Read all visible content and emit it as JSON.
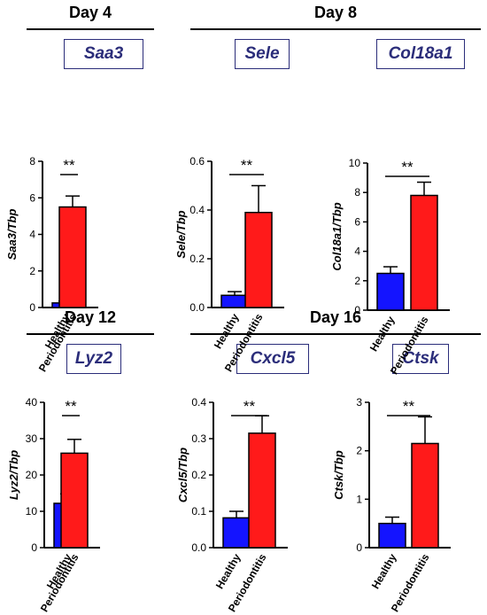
{
  "sections": [
    {
      "title": "Day 4"
    },
    {
      "title": "Day 8"
    },
    {
      "title": "Day 12"
    },
    {
      "title": "Day 16"
    }
  ],
  "colors": {
    "healthy": "#1414ff",
    "periodontitis": "#ff1a1a",
    "title_box_text": "#2b2d7a"
  },
  "chart_data": [
    {
      "type": "bar",
      "title": "Saa3",
      "ylabel": "Saa3/Tbp",
      "ylim": [
        0,
        8
      ],
      "yticks": [
        "0",
        "2",
        "4",
        "6",
        "8"
      ],
      "categories": [
        "Healthy",
        "Periodontitis"
      ],
      "values": [
        0.25,
        5.5
      ],
      "errors": [
        0.1,
        0.6
      ],
      "significance": "**"
    },
    {
      "type": "bar",
      "title": "Sele",
      "ylabel": "Sele/Tbp",
      "ylim": [
        0,
        0.6
      ],
      "yticks": [
        "0.0",
        "0.2",
        "0.4",
        "0.6"
      ],
      "categories": [
        "Healthy",
        "Periodontitis"
      ],
      "values": [
        0.05,
        0.39
      ],
      "errors": [
        0.015,
        0.11
      ],
      "significance": "**"
    },
    {
      "type": "bar",
      "title": "Col18a1",
      "ylabel": "Col18a1/Tbp",
      "ylim": [
        0,
        10
      ],
      "yticks": [
        "0",
        "2",
        "4",
        "6",
        "8",
        "10"
      ],
      "categories": [
        "Healthy",
        "Periodontitis"
      ],
      "values": [
        2.5,
        7.8
      ],
      "errors": [
        0.45,
        0.9
      ],
      "significance": "**"
    },
    {
      "type": "bar",
      "title": "Lyz2",
      "ylabel": "Lyz2/Tbp",
      "ylim": [
        0,
        40
      ],
      "yticks": [
        "0",
        "10",
        "20",
        "30",
        "40"
      ],
      "categories": [
        "Healthy",
        "Periodontitis"
      ],
      "values": [
        12.2,
        26
      ],
      "errors": [
        2.6,
        3.8
      ],
      "significance": "**"
    },
    {
      "type": "bar",
      "title": "Cxcl5",
      "ylabel": "Cxcl5/Tbp",
      "ylim": [
        0,
        0.4
      ],
      "yticks": [
        "0.0",
        "0.1",
        "0.2",
        "0.3",
        "0.4"
      ],
      "categories": [
        "Healthy",
        "Periodontitis"
      ],
      "values": [
        0.082,
        0.315
      ],
      "errors": [
        0.018,
        0.048
      ],
      "significance": "**"
    },
    {
      "type": "bar",
      "title": "Ctsk",
      "ylabel": "Ctsk/Tbp",
      "ylim": [
        0,
        3
      ],
      "yticks": [
        "0",
        "1",
        "2",
        "3"
      ],
      "categories": [
        "Healthy",
        "Periodontitis"
      ],
      "values": [
        0.5,
        2.15
      ],
      "errors": [
        0.13,
        0.55
      ],
      "significance": "**"
    }
  ]
}
